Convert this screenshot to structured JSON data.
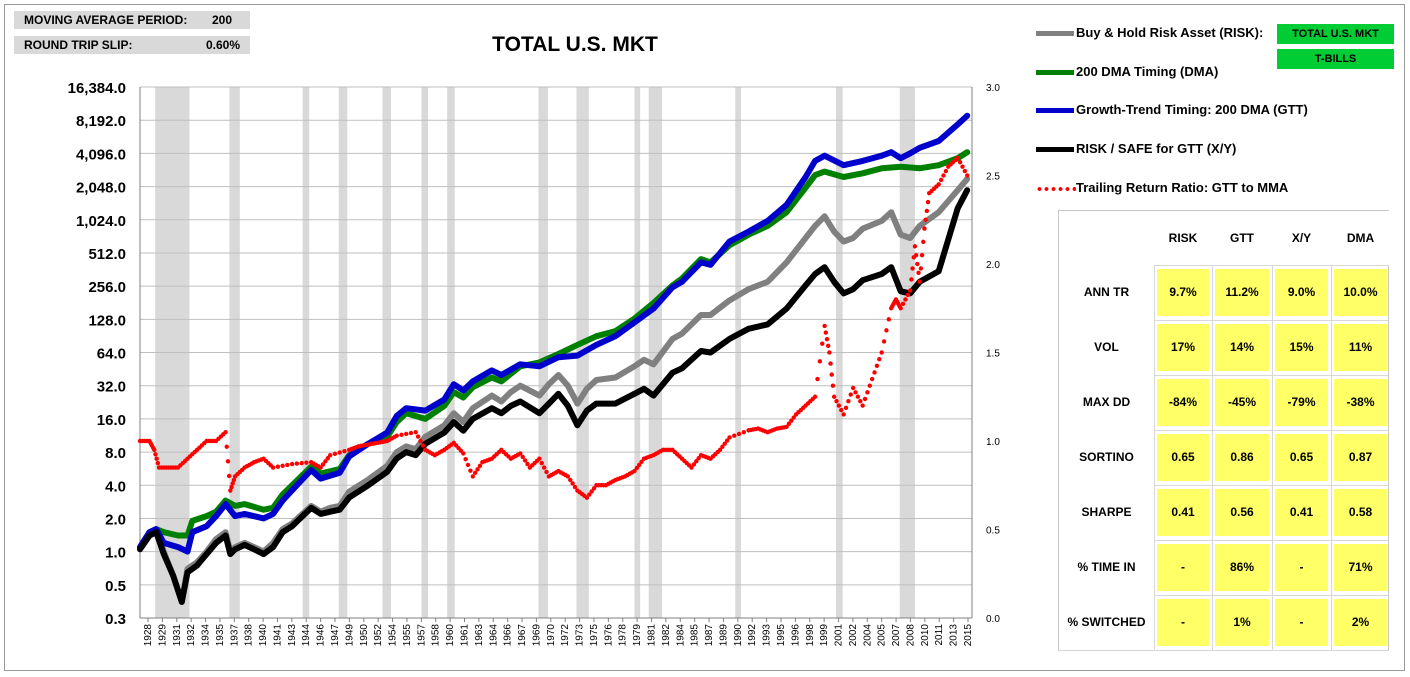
{
  "params": {
    "ma_period_label": "MOVING AVERAGE PERIOD:",
    "ma_period_value": "200",
    "slip_label": "ROUND TRIP SLIP:",
    "slip_value": "0.60%"
  },
  "legend": {
    "items": [
      {
        "label": "Buy & Hold Risk Asset (RISK):",
        "color": "#808080"
      },
      {
        "label": "200 DMA Timing (DMA)",
        "color": "#008000"
      },
      {
        "label": "Growth-Trend Timing: 200 DMA (GTT)",
        "color": "#0000cc"
      },
      {
        "label": "RISK / SAFE for GTT (X/Y)",
        "color": "#000000"
      },
      {
        "label": "Trailing Return Ratio: GTT to MMA",
        "color": "#ff0000"
      }
    ],
    "risk_tag": "TOTAL U.S. MKT",
    "safe_tag": "T-BILLS"
  },
  "stats": {
    "columns": [
      "RISK",
      "GTT",
      "X/Y",
      "DMA"
    ],
    "rows": [
      {
        "label": "ANN TR",
        "values": [
          "9.7%",
          "11.2%",
          "9.0%",
          "10.0%"
        ]
      },
      {
        "label": "VOL",
        "values": [
          "17%",
          "14%",
          "15%",
          "11%"
        ]
      },
      {
        "label": "MAX DD",
        "values": [
          "-84%",
          "-45%",
          "-79%",
          "-38%"
        ]
      },
      {
        "label": "SORTINO",
        "values": [
          "0.65",
          "0.86",
          "0.65",
          "0.87"
        ]
      },
      {
        "label": "SHARPE",
        "values": [
          "0.41",
          "0.56",
          "0.41",
          "0.58"
        ]
      },
      {
        "label": "% TIME IN",
        "values": [
          "-",
          "86%",
          "-",
          "71%"
        ]
      },
      {
        "label": "% SWITCHED",
        "values": [
          "-",
          "1%",
          "-",
          "2%"
        ]
      }
    ]
  },
  "chart_data": {
    "type": "line",
    "title": "TOTAL U.S. MKT",
    "y_scale": "log2",
    "y_ticks": [
      "16,384.0",
      "8,192.0",
      "4,096.0",
      "2,048.0",
      "1,024.0",
      "512.0",
      "256.0",
      "128.0",
      "64.0",
      "32.0",
      "16.0",
      "8.0",
      "4.0",
      "2.0",
      "1.0",
      "0.5",
      "0.3"
    ],
    "y_tick_values": [
      16384,
      8192,
      4096,
      2048,
      1024,
      512,
      256,
      128,
      64,
      32,
      16,
      8,
      4,
      2,
      1,
      0.5,
      0.25
    ],
    "y2_ticks": [
      "3.0",
      "2.5",
      "2.0",
      "1.5",
      "1.0",
      "0.5",
      "0.0"
    ],
    "y2_tick_values": [
      3.0,
      2.5,
      2.0,
      1.5,
      1.0,
      0.5,
      0.0
    ],
    "y2_range": [
      0.0,
      3.0
    ],
    "x_range": [
      1928.0,
      2015.5
    ],
    "x_ticks": [
      "1928",
      "1929",
      "1931",
      "1932",
      "1934",
      "1935",
      "1937",
      "1938",
      "1940",
      "1941",
      "1943",
      "1944",
      "1946",
      "1947",
      "1949",
      "1950",
      "1952",
      "1954",
      "1955",
      "1957",
      "1958",
      "1960",
      "1961",
      "1963",
      "1964",
      "1966",
      "1967",
      "1969",
      "1970",
      "1972",
      "1973",
      "1975",
      "1976",
      "1978",
      "1979",
      "1981",
      "1982",
      "1984",
      "1985",
      "1987",
      "1989",
      "1990",
      "1992",
      "1993",
      "1995",
      "1996",
      "1998",
      "1999",
      "2001",
      "2002",
      "2004",
      "2005",
      "2007",
      "2008",
      "2010",
      "2011",
      "2013",
      "2015"
    ],
    "recessions": [
      [
        1929.6,
        1933.2
      ],
      [
        1937.4,
        1938.5
      ],
      [
        1945.1,
        1945.8
      ],
      [
        1948.9,
        1949.8
      ],
      [
        1953.5,
        1954.4
      ],
      [
        1957.6,
        1958.3
      ],
      [
        1960.3,
        1961.1
      ],
      [
        1969.9,
        1970.9
      ],
      [
        1973.9,
        1975.2
      ],
      [
        1980.0,
        1980.6
      ],
      [
        1981.5,
        1982.9
      ],
      [
        1990.6,
        1991.2
      ],
      [
        2001.2,
        2001.9
      ],
      [
        2007.9,
        2009.5
      ]
    ],
    "series": [
      {
        "name": "RISK",
        "axis": "left",
        "x": [
          1928,
          1929,
          1929.7,
          1930.5,
          1931.5,
          1932.4,
          1933,
          1934,
          1935,
          1936,
          1937,
          1937.5,
          1938,
          1939,
          1940,
          1941,
          1942,
          1943,
          1944,
          1946,
          1947,
          1948,
          1949,
          1950,
          1952,
          1954,
          1955,
          1956,
          1957,
          1958,
          1960,
          1961,
          1962,
          1963,
          1965,
          1966,
          1967,
          1968,
          1970,
          1971,
          1972,
          1973,
          1974,
          1975,
          1976,
          1978,
          1980,
          1981,
          1982,
          1984,
          1985,
          1987,
          1988,
          1990,
          1992,
          1994,
          1996,
          1998,
          1999,
          2000,
          2001,
          2002,
          2003,
          2004,
          2006,
          2007,
          2008,
          2009,
          2010,
          2012,
          2014,
          2015
        ],
        "y": [
          1.1,
          1.5,
          1.6,
          1.0,
          0.6,
          0.35,
          0.7,
          0.8,
          1.0,
          1.3,
          1.5,
          1.0,
          1.1,
          1.2,
          1.1,
          1.0,
          1.2,
          1.6,
          1.8,
          2.6,
          2.3,
          2.5,
          2.6,
          3.5,
          4.5,
          6,
          8,
          9,
          8.5,
          11,
          14,
          18,
          15,
          20,
          26,
          23,
          28,
          32,
          26,
          33,
          40,
          32,
          22,
          30,
          36,
          38,
          48,
          55,
          50,
          85,
          95,
          140,
          140,
          190,
          240,
          280,
          420,
          700,
          900,
          1100,
          800,
          650,
          700,
          850,
          1000,
          1200,
          750,
          700,
          900,
          1200,
          1900,
          2400
        ]
      },
      {
        "name": "DMA",
        "axis": "left",
        "x": [
          1928,
          1929,
          1929.7,
          1930.5,
          1932,
          1933,
          1933.5,
          1935,
          1936,
          1937,
          1938,
          1939,
          1941,
          1942,
          1943,
          1944,
          1946,
          1947,
          1949,
          1950,
          1952,
          1954,
          1955,
          1956,
          1958,
          1960,
          1961,
          1962,
          1963,
          1965,
          1966,
          1968,
          1970,
          1972,
          1974,
          1976,
          1978,
          1980,
          1982,
          1984,
          1985,
          1987,
          1988,
          1990,
          1992,
          1994,
          1996,
          1998,
          1999,
          2000,
          2002,
          2004,
          2006,
          2008,
          2010,
          2012,
          2014,
          2015
        ],
        "y": [
          1.1,
          1.5,
          1.6,
          1.5,
          1.4,
          1.4,
          1.9,
          2.1,
          2.3,
          2.9,
          2.6,
          2.7,
          2.4,
          2.5,
          3.3,
          4.0,
          5.9,
          5.1,
          5.6,
          7.5,
          9.5,
          11,
          15,
          18,
          16,
          21,
          28,
          25,
          31,
          38,
          35,
          48,
          52,
          62,
          75,
          90,
          100,
          130,
          180,
          260,
          300,
          450,
          420,
          600,
          750,
          900,
          1200,
          2000,
          2600,
          2800,
          2500,
          2700,
          3000,
          3100,
          3000,
          3200,
          3700,
          4200
        ]
      },
      {
        "name": "GTT",
        "axis": "left",
        "x": [
          1928,
          1929,
          1929.7,
          1930.5,
          1932,
          1933,
          1933.5,
          1935,
          1936,
          1937,
          1938,
          1939,
          1941,
          1942,
          1943,
          1944,
          1946,
          1947,
          1949,
          1950,
          1952,
          1954,
          1955,
          1956,
          1958,
          1960,
          1961,
          1962,
          1963,
          1965,
          1966,
          1968,
          1970,
          1972,
          1974,
          1976,
          1978,
          1980,
          1982,
          1984,
          1985,
          1987,
          1988,
          1990,
          1992,
          1994,
          1996,
          1998,
          1999,
          2000,
          2002,
          2004,
          2006,
          2007,
          2008,
          2009,
          2010,
          2012,
          2014,
          2015
        ],
        "y": [
          1.1,
          1.5,
          1.6,
          1.2,
          1.1,
          1.0,
          1.5,
          1.7,
          2.1,
          2.7,
          2.1,
          2.2,
          2.0,
          2.2,
          2.9,
          3.6,
          5.5,
          4.6,
          5.2,
          7.3,
          9.5,
          12,
          17,
          20,
          19,
          24,
          33,
          29,
          35,
          44,
          40,
          50,
          48,
          58,
          60,
          75,
          90,
          120,
          160,
          250,
          280,
          420,
          400,
          650,
          800,
          1000,
          1400,
          2500,
          3500,
          3900,
          3200,
          3500,
          3900,
          4200,
          3700,
          4100,
          4600,
          5300,
          7500,
          9000
        ]
      },
      {
        "name": "X/Y",
        "axis": "left",
        "x": [
          1928,
          1929,
          1929.7,
          1930.5,
          1931.5,
          1932.4,
          1933,
          1934,
          1935,
          1936,
          1937,
          1937.5,
          1938,
          1939,
          1940,
          1941,
          1942,
          1943,
          1944,
          1946,
          1947,
          1948,
          1949,
          1950,
          1952,
          1954,
          1955,
          1956,
          1957,
          1958,
          1960,
          1961,
          1962,
          1963,
          1965,
          1966,
          1967,
          1968,
          1970,
          1971,
          1972,
          1973,
          1974,
          1975,
          1976,
          1978,
          1980,
          1981,
          1982,
          1984,
          1985,
          1987,
          1988,
          1990,
          1992,
          1994,
          1996,
          1998,
          1999,
          2000,
          2001,
          2002,
          2003,
          2004,
          2006,
          2007,
          2008,
          2009,
          2010,
          2012,
          2014,
          2015
        ],
        "y": [
          1.05,
          1.4,
          1.5,
          0.95,
          0.6,
          0.35,
          0.65,
          0.75,
          0.95,
          1.2,
          1.4,
          0.95,
          1.05,
          1.15,
          1.05,
          0.95,
          1.1,
          1.5,
          1.7,
          2.5,
          2.2,
          2.3,
          2.4,
          3.1,
          4.0,
          5.3,
          7,
          8,
          7.5,
          9.5,
          12,
          15,
          12.5,
          16,
          20,
          18,
          21,
          23,
          18,
          22,
          27,
          21,
          14,
          19,
          22,
          22,
          27,
          30,
          26,
          42,
          46,
          66,
          64,
          85,
          105,
          115,
          160,
          260,
          330,
          380,
          280,
          220,
          240,
          290,
          330,
          380,
          230,
          220,
          280,
          350,
          1300,
          1900
        ]
      },
      {
        "name": "Trailing Return Ratio",
        "axis": "right",
        "x": [
          1928,
          1929,
          1929.5,
          1930,
          1931,
          1932,
          1933,
          1934,
          1935,
          1936,
          1937,
          1937.5,
          1938,
          1939,
          1940,
          1941,
          1942,
          1944,
          1946,
          1947,
          1948,
          1950,
          1951,
          1952,
          1953,
          1954,
          1955,
          1957,
          1958,
          1959,
          1960,
          1961,
          1962,
          1963,
          1964,
          1965,
          1966,
          1967,
          1968,
          1969,
          1970,
          1971,
          1972,
          1973,
          1974,
          1975,
          1976,
          1977,
          1978,
          1979,
          1980,
          1981,
          1982,
          1983,
          1984,
          1985,
          1986,
          1987,
          1988,
          1989,
          1990,
          1992,
          1993,
          1994,
          1995,
          1996,
          1997,
          1998,
          1999,
          2000,
          2000.5,
          2001,
          2002,
          2003,
          2004,
          2005,
          2006,
          2007,
          2007.5,
          2008,
          2009,
          2009.5,
          2010,
          2010.5,
          2011,
          2012,
          2013,
          2014,
          2015
        ],
        "y": [
          1.0,
          1.0,
          0.95,
          0.85,
          0.85,
          0.85,
          0.9,
          0.95,
          1.0,
          1.0,
          1.05,
          0.72,
          0.8,
          0.85,
          0.88,
          0.9,
          0.85,
          0.87,
          0.88,
          0.85,
          0.92,
          0.95,
          0.97,
          0.98,
          0.99,
          1.0,
          1.03,
          1.05,
          0.95,
          0.92,
          0.95,
          0.99,
          0.93,
          0.8,
          0.88,
          0.9,
          0.95,
          0.9,
          0.93,
          0.85,
          0.9,
          0.8,
          0.83,
          0.8,
          0.72,
          0.68,
          0.75,
          0.75,
          0.78,
          0.8,
          0.83,
          0.9,
          0.92,
          0.95,
          0.95,
          0.9,
          0.85,
          0.92,
          0.9,
          0.95,
          1.02,
          1.06,
          1.07,
          1.05,
          1.07,
          1.08,
          1.15,
          1.2,
          1.25,
          1.65,
          1.5,
          1.25,
          1.15,
          1.3,
          1.2,
          1.35,
          1.5,
          1.75,
          1.8,
          1.75,
          1.85,
          2.1,
          1.9,
          2.2,
          2.4,
          2.45,
          2.55,
          2.6,
          2.5
        ]
      }
    ]
  }
}
